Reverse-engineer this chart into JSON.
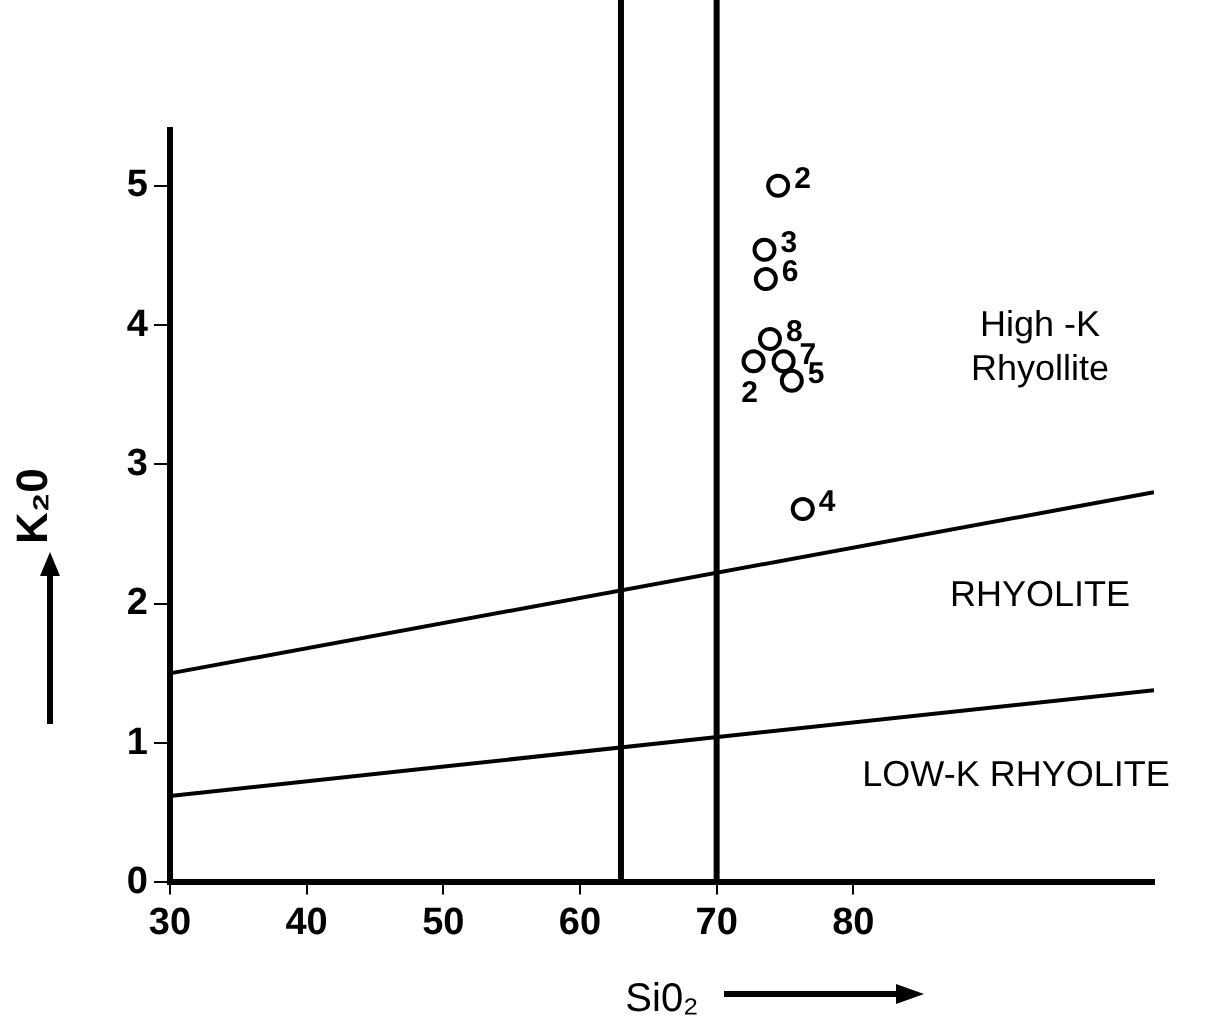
{
  "chart_data": {
    "type": "scatter",
    "xlabel": "Si0₂",
    "ylabel": "K₂0",
    "xlim": [
      30,
      102
    ],
    "ylim": [
      0,
      5.4
    ],
    "xticks": [
      30,
      40,
      50,
      60,
      70,
      80
    ],
    "yticks": [
      0,
      1,
      2,
      3,
      4,
      5
    ],
    "grid": false,
    "legend": false,
    "series": [
      {
        "marker": "circle",
        "color": "#000000",
        "x": [
          74.5,
          73.5,
          73.6,
          73.9,
          72.7,
          74.9,
          75.5,
          76.3
        ],
        "values": [
          5.0,
          4.54,
          4.33,
          3.9,
          3.74,
          3.74,
          3.6,
          2.68
        ]
      },
      {
        "type": "line",
        "color": "#000000",
        "x": [
          30,
          102
        ],
        "values": [
          1.5,
          2.8
        ]
      },
      {
        "type": "line",
        "color": "#000000",
        "x": [
          30,
          102
        ],
        "values": [
          0.62,
          1.38
        ]
      }
    ],
    "ref_lines": [
      {
        "axis": "x",
        "value": 63,
        "color": "#000000"
      },
      {
        "axis": "x",
        "value": 70,
        "color": "#000000"
      }
    ],
    "annotations": [
      {
        "text": "2",
        "x": 74.5,
        "y": 5.0
      },
      {
        "text": "3",
        "x": 73.5,
        "y": 4.54
      },
      {
        "text": "6",
        "x": 73.6,
        "y": 4.33
      },
      {
        "text": "8",
        "x": 73.9,
        "y": 3.9
      },
      {
        "text": "2",
        "x": 72.7,
        "y": 3.74
      },
      {
        "text": "7",
        "x": 74.9,
        "y": 3.74
      },
      {
        "text": "5",
        "x": 75.5,
        "y": 3.6
      },
      {
        "text": "4",
        "x": 76.3,
        "y": 2.68
      },
      "High -K\nRhyollite",
      "RHYOLITE",
      "LOW-K RHYOLITE"
    ]
  }
}
